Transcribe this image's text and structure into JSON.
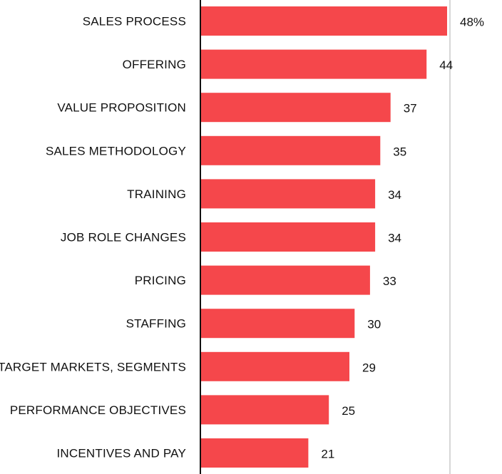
{
  "chart_data": {
    "type": "bar",
    "orientation": "horizontal",
    "categories": [
      "SALES PROCESS",
      "OFFERING",
      "VALUE PROPOSITION",
      "SALES METHODOLOGY",
      "TRAINING",
      "JOB ROLE CHANGES",
      "PRICING",
      "STAFFING",
      "TARGET MARKETS, SEGMENTS",
      "PERFORMANCE OBJECTIVES",
      "INCENTIVES AND PAY"
    ],
    "values": [
      48,
      44,
      37,
      35,
      34,
      34,
      33,
      30,
      29,
      25,
      21
    ],
    "value_labels": [
      "48%",
      "44",
      "37",
      "35",
      "34",
      "34",
      "33",
      "30",
      "29",
      "25",
      "21"
    ],
    "xlim": [
      0,
      48
    ],
    "grid": false,
    "colors": {
      "bar": "#f5474b",
      "axis": "#111111",
      "reference_line": "#c8c8c8"
    }
  }
}
